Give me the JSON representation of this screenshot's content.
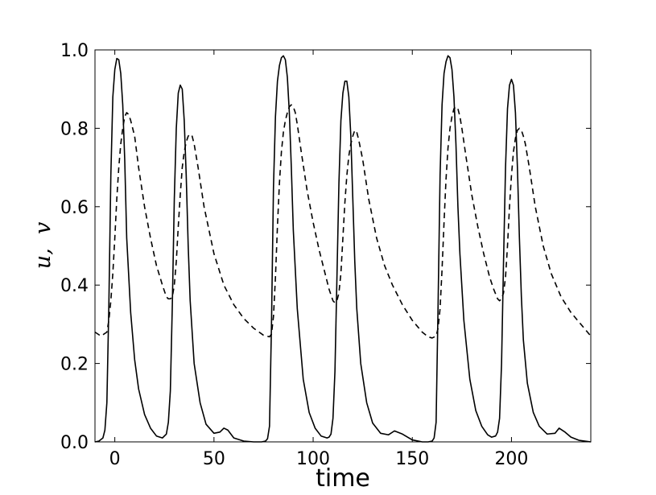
{
  "chart_data": {
    "type": "line",
    "xlabel": "time",
    "ylabel": "u,  v",
    "xlim": [
      -10,
      240
    ],
    "ylim": [
      0.0,
      1.0
    ],
    "grid": false,
    "x_ticks": [
      0,
      50,
      100,
      150,
      200
    ],
    "x_tick_labels": [
      "0",
      "50",
      "100",
      "150",
      "200"
    ],
    "y_ticks": [
      0.0,
      0.2,
      0.4,
      0.6,
      0.8,
      1.0
    ],
    "y_tick_labels": [
      "0.0",
      "0.2",
      "0.4",
      "0.6",
      "0.8",
      "1.0"
    ],
    "series": [
      {
        "style": "solid",
        "color": "#000000",
        "x": [
          -10,
          -8,
          -6,
          -5,
          -4,
          -3,
          -2,
          -1,
          0,
          1,
          2,
          3,
          4,
          5,
          6,
          8,
          10,
          12,
          15,
          18,
          21,
          24,
          26,
          27,
          28,
          29,
          30,
          31,
          32,
          33,
          34,
          35,
          36,
          37,
          38,
          40,
          43,
          46,
          50,
          53,
          55,
          57,
          60,
          65,
          70,
          74,
          76,
          77,
          78,
          79,
          80,
          81,
          82,
          83,
          84,
          85,
          86,
          87,
          88,
          89,
          90,
          92,
          95,
          98,
          101,
          104,
          107,
          108,
          109,
          110,
          111,
          112,
          113,
          114,
          115,
          116,
          117,
          118,
          119,
          120,
          121,
          122,
          124,
          127,
          130,
          134,
          138,
          141,
          145,
          150,
          155,
          158,
          160,
          161,
          162,
          163,
          164,
          165,
          166,
          167,
          168,
          169,
          170,
          171,
          172,
          173,
          174,
          176,
          179,
          182,
          185,
          188,
          190,
          192,
          193,
          194,
          195,
          196,
          197,
          198,
          199,
          200,
          201,
          202,
          203,
          204,
          205,
          206,
          208,
          211,
          214,
          218,
          222,
          224,
          227,
          230,
          234,
          240
        ],
        "y": [
          0.0,
          0.002,
          0.01,
          0.03,
          0.1,
          0.35,
          0.68,
          0.88,
          0.95,
          0.978,
          0.975,
          0.94,
          0.86,
          0.72,
          0.52,
          0.33,
          0.21,
          0.135,
          0.07,
          0.035,
          0.015,
          0.01,
          0.02,
          0.05,
          0.13,
          0.35,
          0.62,
          0.8,
          0.89,
          0.91,
          0.9,
          0.82,
          0.68,
          0.5,
          0.36,
          0.2,
          0.1,
          0.045,
          0.022,
          0.025,
          0.035,
          0.03,
          0.01,
          0.002,
          0.0,
          0.0,
          0.002,
          0.008,
          0.04,
          0.3,
          0.65,
          0.83,
          0.92,
          0.96,
          0.98,
          0.985,
          0.975,
          0.93,
          0.84,
          0.7,
          0.54,
          0.34,
          0.16,
          0.075,
          0.035,
          0.015,
          0.01,
          0.012,
          0.02,
          0.06,
          0.18,
          0.42,
          0.66,
          0.82,
          0.89,
          0.92,
          0.92,
          0.88,
          0.78,
          0.62,
          0.46,
          0.34,
          0.2,
          0.1,
          0.048,
          0.022,
          0.018,
          0.028,
          0.02,
          0.005,
          0.0,
          0.0,
          0.002,
          0.01,
          0.05,
          0.35,
          0.68,
          0.86,
          0.94,
          0.97,
          0.985,
          0.98,
          0.95,
          0.88,
          0.76,
          0.6,
          0.48,
          0.31,
          0.16,
          0.08,
          0.04,
          0.018,
          0.012,
          0.015,
          0.025,
          0.06,
          0.2,
          0.46,
          0.7,
          0.85,
          0.91,
          0.925,
          0.91,
          0.84,
          0.7,
          0.52,
          0.37,
          0.26,
          0.15,
          0.075,
          0.04,
          0.02,
          0.022,
          0.035,
          0.025,
          0.012,
          0.004,
          0.0
        ]
      },
      {
        "style": "dashed",
        "color": "#000000",
        "x": [
          -10,
          -7,
          -4,
          -3,
          -2,
          -1,
          0,
          1,
          2,
          3,
          4,
          5,
          6,
          7,
          8,
          10,
          12,
          15,
          18,
          21,
          24,
          26,
          27,
          28,
          29,
          30,
          31,
          32,
          33,
          34,
          35,
          36,
          37,
          38,
          39,
          40,
          42,
          45,
          50,
          55,
          60,
          65,
          70,
          75,
          78,
          79,
          80,
          81,
          82,
          83,
          84,
          85,
          86,
          87,
          88,
          89,
          90,
          91,
          92,
          94,
          97,
          100,
          103,
          106,
          108,
          110,
          111,
          112,
          113,
          114,
          115,
          116,
          117,
          118,
          119,
          120,
          121,
          122,
          123,
          125,
          128,
          132,
          136,
          140,
          145,
          150,
          155,
          158,
          160,
          162,
          163,
          164,
          165,
          166,
          167,
          168,
          169,
          170,
          171,
          172,
          173,
          174,
          175,
          177,
          180,
          183,
          186,
          189,
          191,
          193,
          194,
          195,
          196,
          197,
          198,
          199,
          200,
          201,
          202,
          203,
          204,
          205,
          206,
          207,
          209,
          212,
          216,
          220,
          225,
          230,
          235,
          240
        ],
        "y": [
          0.28,
          0.27,
          0.28,
          0.31,
          0.36,
          0.43,
          0.52,
          0.62,
          0.7,
          0.76,
          0.8,
          0.83,
          0.84,
          0.835,
          0.82,
          0.78,
          0.7,
          0.6,
          0.52,
          0.45,
          0.4,
          0.37,
          0.365,
          0.365,
          0.37,
          0.4,
          0.46,
          0.55,
          0.63,
          0.7,
          0.74,
          0.765,
          0.78,
          0.785,
          0.78,
          0.76,
          0.7,
          0.6,
          0.48,
          0.4,
          0.35,
          0.315,
          0.29,
          0.272,
          0.268,
          0.275,
          0.32,
          0.42,
          0.55,
          0.66,
          0.74,
          0.79,
          0.82,
          0.84,
          0.855,
          0.86,
          0.855,
          0.84,
          0.81,
          0.74,
          0.64,
          0.56,
          0.49,
          0.43,
          0.39,
          0.36,
          0.355,
          0.36,
          0.38,
          0.43,
          0.52,
          0.61,
          0.68,
          0.73,
          0.76,
          0.78,
          0.795,
          0.79,
          0.77,
          0.72,
          0.62,
          0.52,
          0.45,
          0.4,
          0.35,
          0.31,
          0.28,
          0.268,
          0.265,
          0.27,
          0.29,
          0.34,
          0.44,
          0.56,
          0.67,
          0.75,
          0.8,
          0.83,
          0.85,
          0.855,
          0.85,
          0.83,
          0.8,
          0.73,
          0.63,
          0.55,
          0.48,
          0.42,
          0.39,
          0.365,
          0.36,
          0.365,
          0.38,
          0.42,
          0.5,
          0.6,
          0.68,
          0.74,
          0.775,
          0.795,
          0.8,
          0.795,
          0.78,
          0.76,
          0.7,
          0.6,
          0.5,
          0.43,
          0.37,
          0.33,
          0.3,
          0.27
        ]
      }
    ]
  }
}
